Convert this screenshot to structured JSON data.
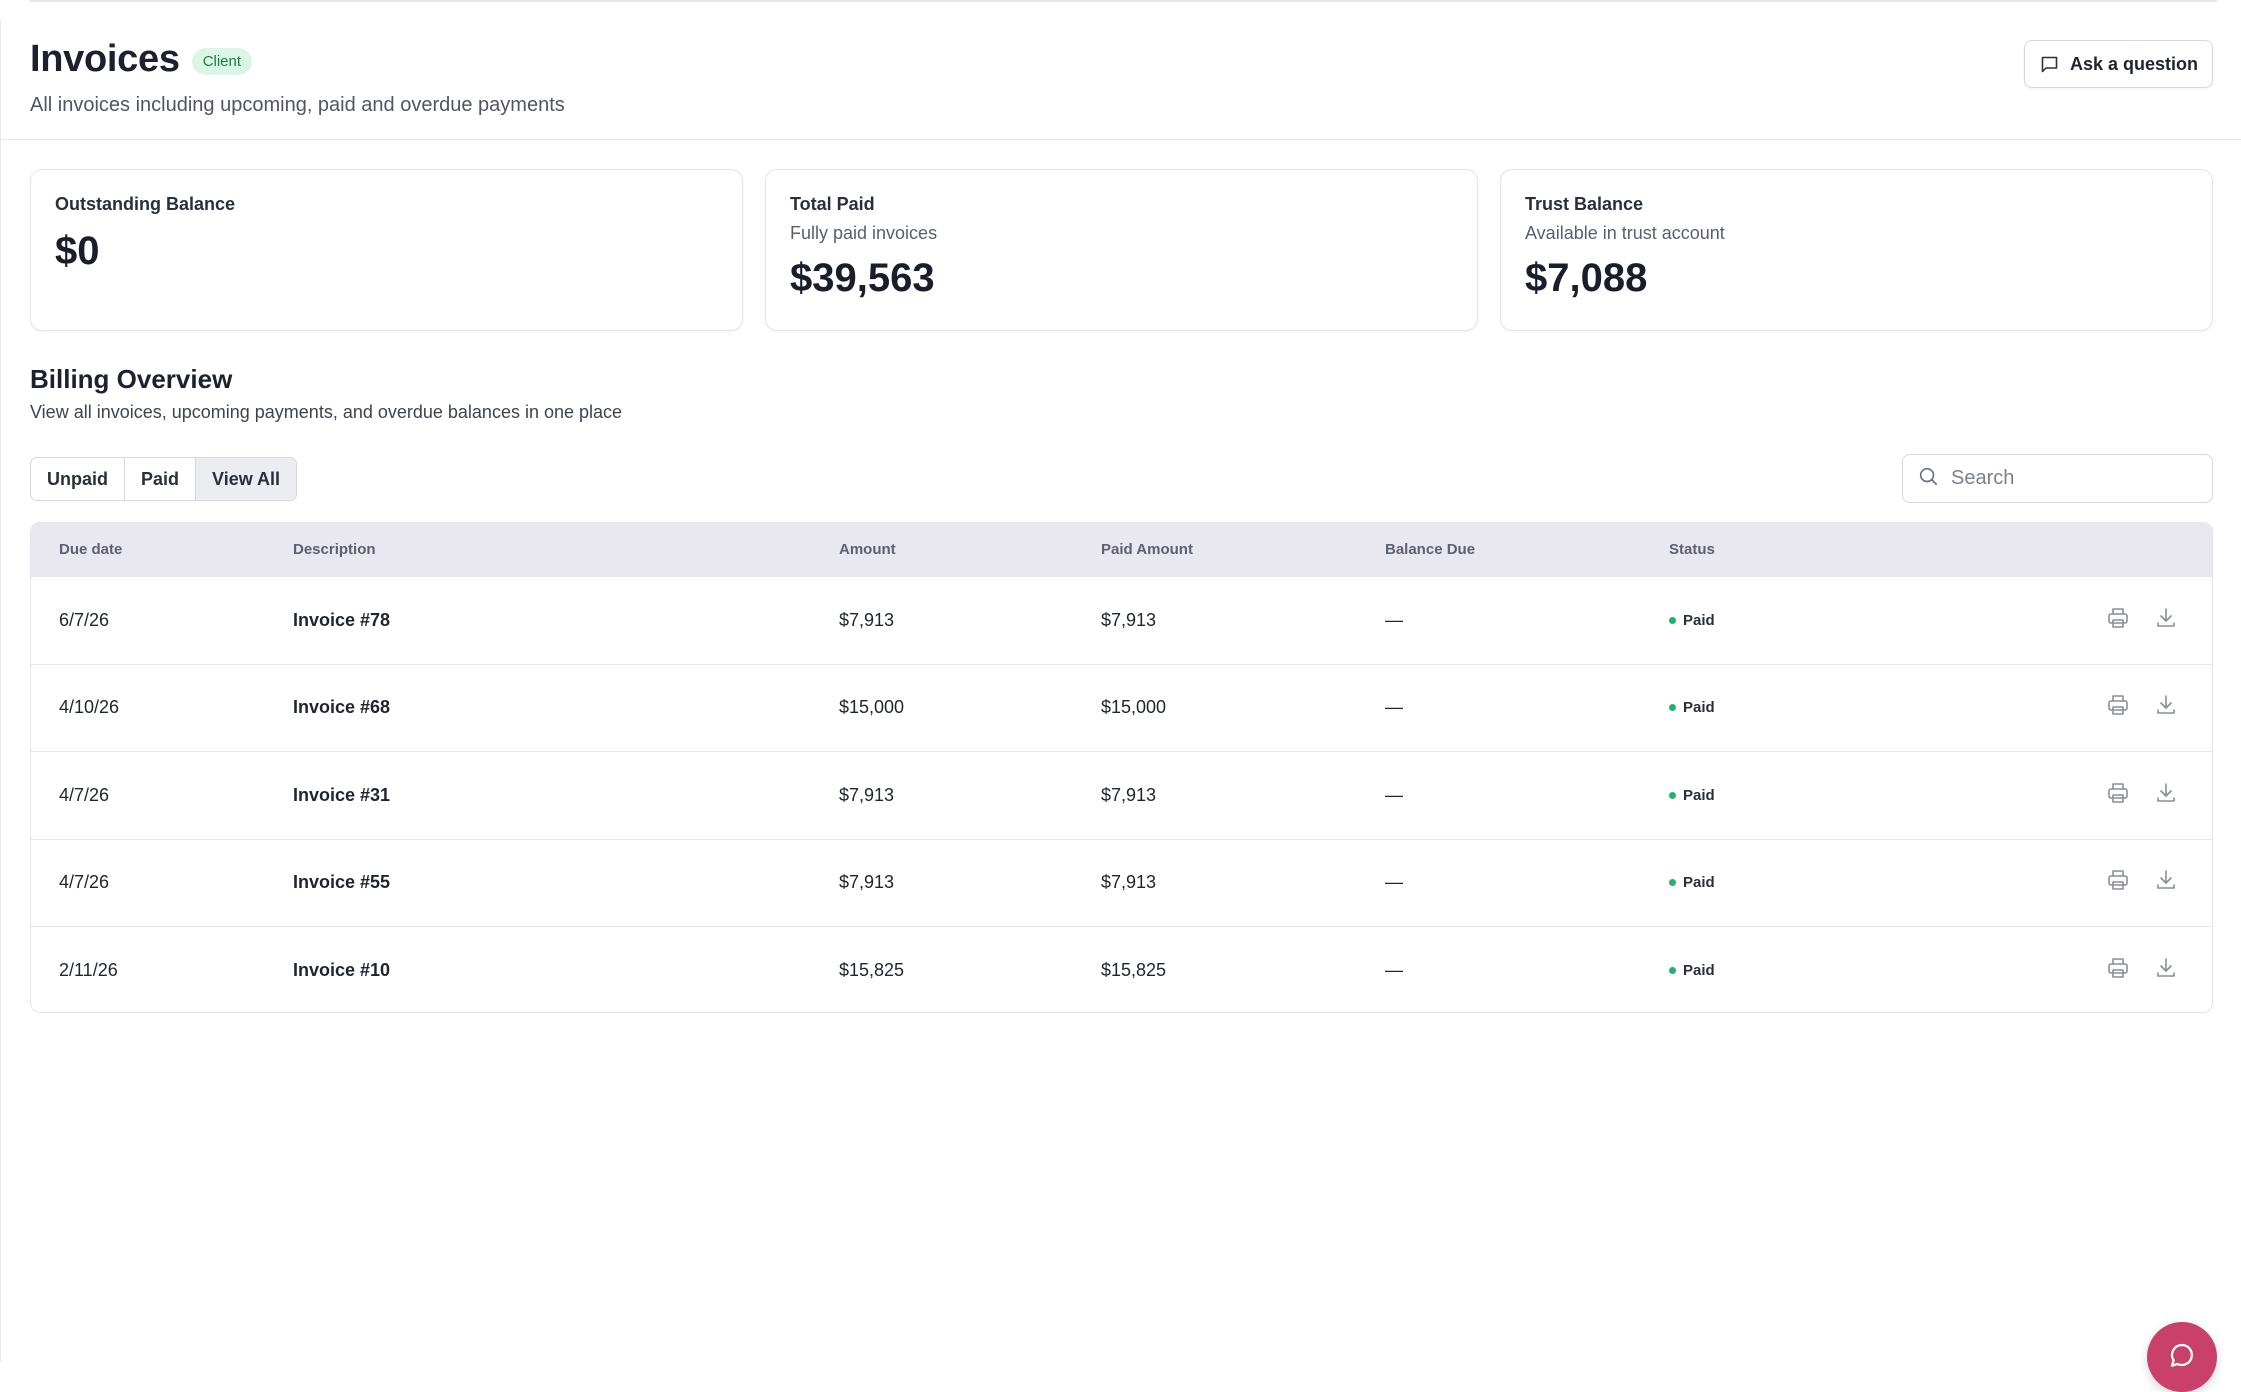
{
  "header": {
    "title": "Invoices",
    "badge": "Client",
    "subtitle": "All invoices including upcoming, paid and overdue payments",
    "ask_button_label": "Ask a question"
  },
  "cards": {
    "outstanding": {
      "title": "Outstanding Balance",
      "value": "$0"
    },
    "total_paid": {
      "title": "Total Paid",
      "subtitle": "Fully paid invoices",
      "value": "$39,563"
    },
    "trust": {
      "title": "Trust Balance",
      "subtitle": "Available in trust account",
      "value": "$7,088"
    }
  },
  "billing": {
    "title": "Billing Overview",
    "subtitle": "View all invoices, upcoming payments, and overdue balances in one place",
    "filters": [
      "Unpaid",
      "Paid",
      "View All"
    ],
    "active_filter": "View All",
    "search_placeholder": "Search"
  },
  "table": {
    "columns": [
      "Due date",
      "Description",
      "Amount",
      "Paid Amount",
      "Balance Due",
      "Status"
    ],
    "rows": [
      {
        "due": "6/7/26",
        "desc": "Invoice #78",
        "amount": "$7,913",
        "paid": "$7,913",
        "balance": "—",
        "status": "Paid"
      },
      {
        "due": "4/10/26",
        "desc": "Invoice #68",
        "amount": "$15,000",
        "paid": "$15,000",
        "balance": "—",
        "status": "Paid"
      },
      {
        "due": "4/7/26",
        "desc": "Invoice #31",
        "amount": "$7,913",
        "paid": "$7,913",
        "balance": "—",
        "status": "Paid"
      },
      {
        "due": "4/7/26",
        "desc": "Invoice #55",
        "amount": "$7,913",
        "paid": "$7,913",
        "balance": "—",
        "status": "Paid"
      },
      {
        "due": "2/11/26",
        "desc": "Invoice #10",
        "amount": "$15,825",
        "paid": "$15,825",
        "balance": "—",
        "status": "Paid"
      }
    ]
  },
  "colors": {
    "status_paid": "#22b36b",
    "badge_bg": "#dcf6e6",
    "chat_fab": "#c9416a",
    "table_header_bg": "#e9e8f0"
  },
  "icons": {
    "ask": "message-square-icon",
    "search": "search-icon",
    "print": "printer-icon",
    "download": "download-icon",
    "chat": "chat-bubble-icon"
  }
}
